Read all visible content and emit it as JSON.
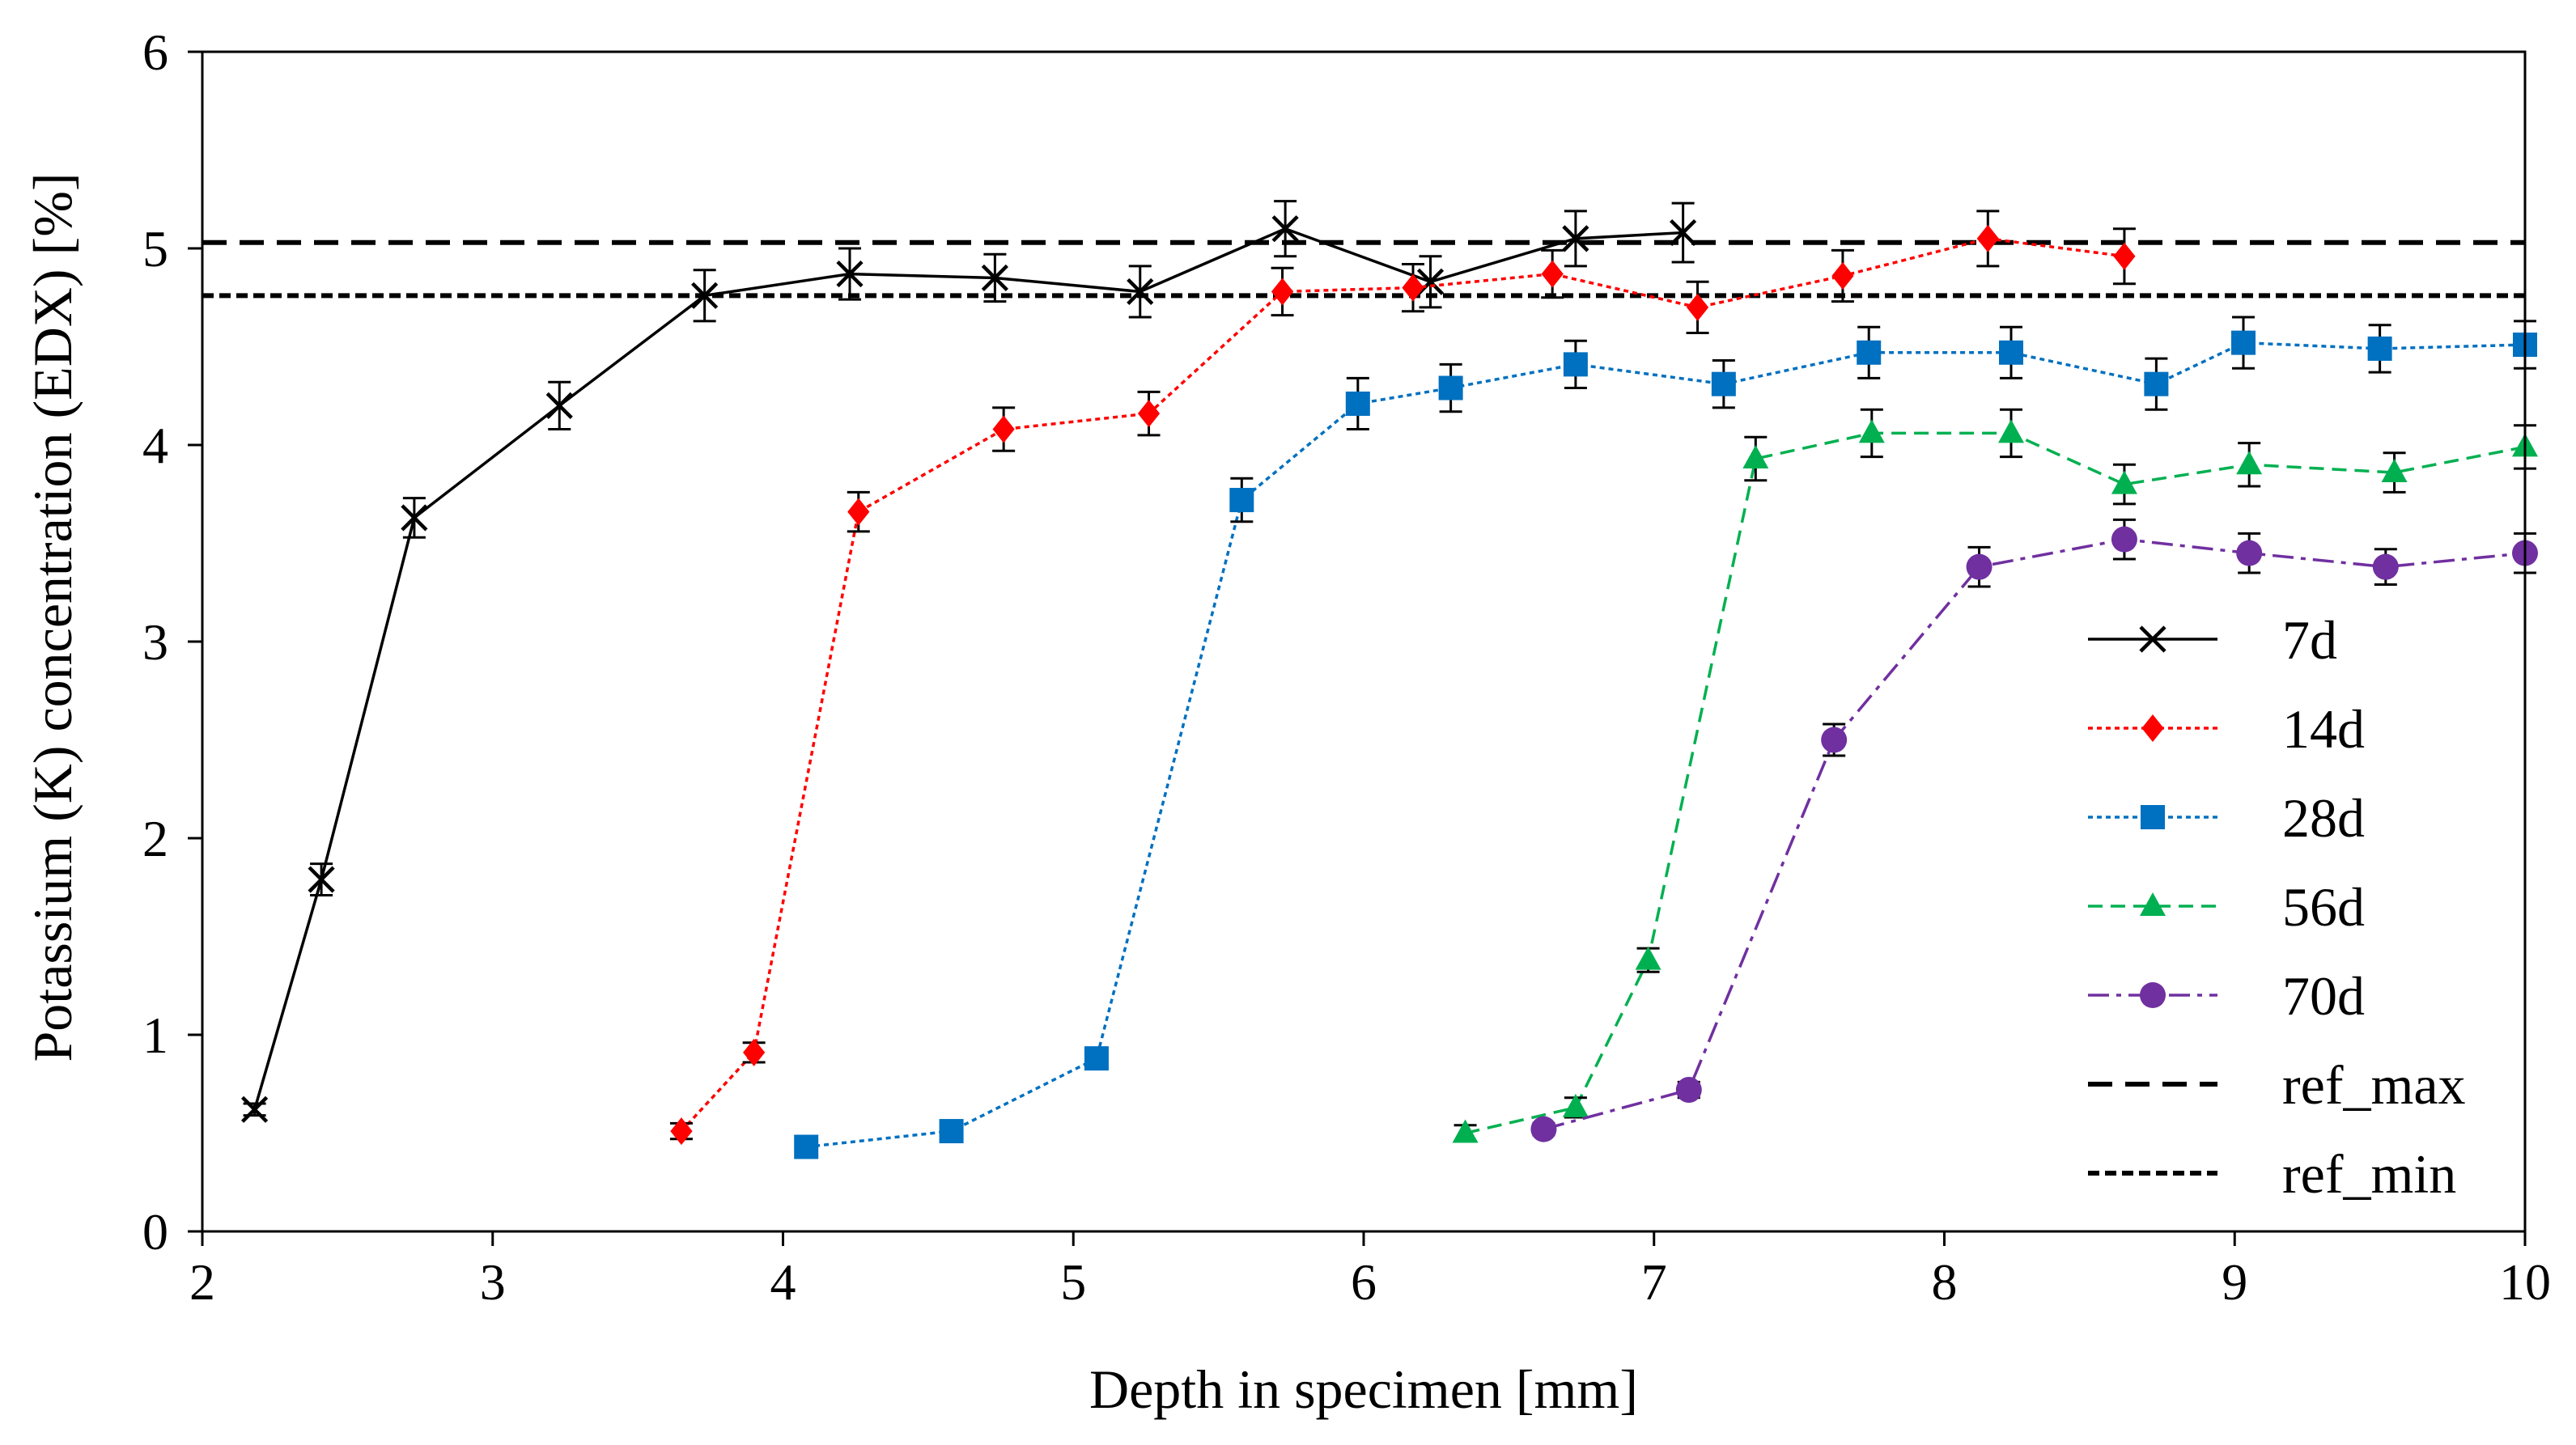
{
  "chart_data": {
    "type": "line",
    "title": "",
    "xlabel": "Depth in specimen [mm]",
    "ylabel": "Potassium (K) concentration (EDX) [%]",
    "xlim": [
      2,
      10
    ],
    "ylim": [
      0,
      6
    ],
    "xticks": [
      "2",
      "3",
      "4",
      "5",
      "6",
      "7",
      "8",
      "9",
      "10"
    ],
    "yticks": [
      "0",
      "1",
      "2",
      "3",
      "4",
      "5",
      "6"
    ],
    "grid": false,
    "legend_position": "right",
    "series": [
      {
        "name": "7d",
        "color": "#000000",
        "marker": "x",
        "line": "solid",
        "x": [
          2.18,
          2.41,
          2.73,
          3.23,
          3.73,
          4.23,
          4.73,
          5.23,
          5.73,
          6.23,
          6.73,
          7.1
        ],
        "y": [
          0.62,
          1.79,
          3.63,
          4.2,
          4.76,
          4.87,
          4.85,
          4.78,
          5.1,
          4.83,
          5.05,
          5.08
        ],
        "err": [
          0.03,
          0.08,
          0.1,
          0.12,
          0.13,
          0.13,
          0.12,
          0.13,
          0.14,
          0.13,
          0.14,
          0.15
        ]
      },
      {
        "name": "14d",
        "color": "#ff0000",
        "marker": "diamond",
        "line": "dotted",
        "x": [
          3.65,
          3.9,
          4.26,
          4.76,
          5.26,
          5.72,
          6.17,
          6.65,
          7.15,
          7.65,
          8.15,
          8.62
        ],
        "y": [
          0.51,
          0.91,
          3.66,
          4.08,
          4.16,
          4.78,
          4.8,
          4.87,
          4.7,
          4.86,
          5.05,
          4.96
        ],
        "err": [
          0.04,
          0.05,
          0.1,
          0.11,
          0.11,
          0.12,
          0.12,
          0.12,
          0.13,
          0.13,
          0.14,
          0.14
        ]
      },
      {
        "name": "28d",
        "color": "#0070c0",
        "marker": "square",
        "line": "dotted",
        "x": [
          4.08,
          4.58,
          5.08,
          5.58,
          5.98,
          6.3,
          6.73,
          7.24,
          7.74,
          8.23,
          8.73,
          9.03,
          9.5,
          10.0
        ],
        "y": [
          0.43,
          0.51,
          0.88,
          3.72,
          4.21,
          4.29,
          4.41,
          4.31,
          4.47,
          4.47,
          4.31,
          4.52,
          4.49,
          4.51
        ],
        "err": [
          0.04,
          0.04,
          0.05,
          0.11,
          0.13,
          0.12,
          0.12,
          0.12,
          0.13,
          0.13,
          0.13,
          0.13,
          0.12,
          0.12
        ]
      },
      {
        "name": "56d",
        "color": "#00b050",
        "marker": "triangle",
        "line": "dashed",
        "x": [
          6.35,
          6.73,
          6.98,
          7.35,
          7.75,
          8.23,
          8.62,
          9.05,
          9.55,
          10.0
        ],
        "y": [
          0.5,
          0.63,
          1.38,
          3.93,
          4.06,
          4.06,
          3.8,
          3.9,
          3.86,
          3.99
        ],
        "err": [
          0.04,
          0.05,
          0.06,
          0.11,
          0.12,
          0.12,
          0.1,
          0.11,
          0.1,
          0.11
        ]
      },
      {
        "name": "70d",
        "color": "#7030a0",
        "marker": "circle",
        "line": "dashdot",
        "x": [
          6.62,
          7.12,
          7.62,
          8.12,
          8.62,
          9.05,
          9.52,
          10.0
        ],
        "y": [
          0.52,
          0.72,
          2.5,
          3.38,
          3.52,
          3.45,
          3.38,
          3.45
        ],
        "err": [
          0.03,
          0.04,
          0.08,
          0.1,
          0.1,
          0.1,
          0.09,
          0.1
        ]
      }
    ],
    "reference_lines": [
      {
        "name": "ref_max",
        "y": 5.03,
        "color": "#000000",
        "dash": "long"
      },
      {
        "name": "ref_min",
        "y": 4.76,
        "color": "#000000",
        "dash": "short"
      }
    ]
  }
}
